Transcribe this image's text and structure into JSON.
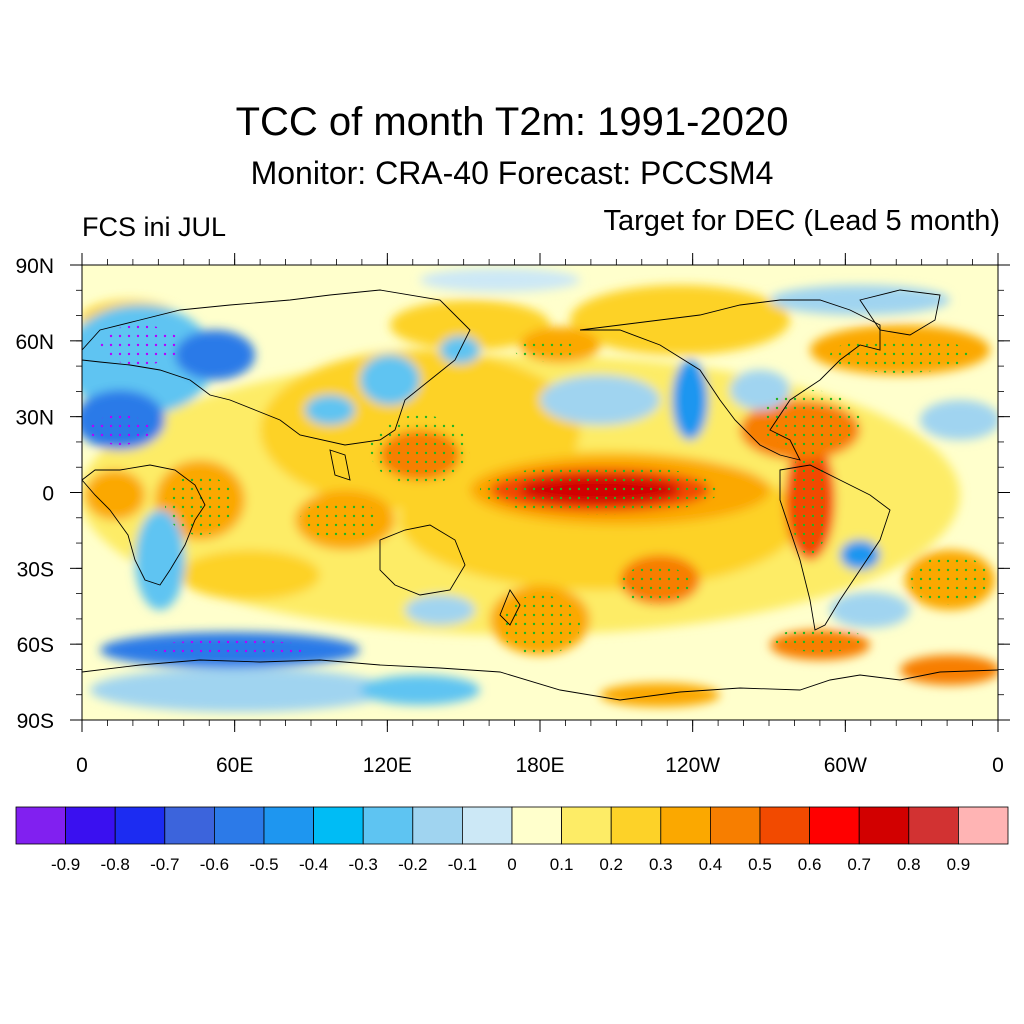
{
  "title": "TCC of month T2m: 1991-2020",
  "subtitle": "Monitor: CRA-40   Forecast: PCCSM4",
  "left_label": "FCS ini JUL",
  "right_label": "Target for DEC (Lead 5 month)",
  "map": {
    "lat_ticks": [
      "90N",
      "60N",
      "30N",
      "0",
      "30S",
      "60S",
      "90S"
    ],
    "lon_ticks": [
      "0",
      "60E",
      "120E",
      "180E",
      "120W",
      "60W",
      "0"
    ],
    "background_color": "#ffffcc"
  },
  "colorbar": {
    "colors": [
      "#8120f0",
      "#3a10f0",
      "#1c2cf2",
      "#3c64dc",
      "#2c7ae8",
      "#1e96f0",
      "#00bcf5",
      "#5ec4f2",
      "#a0d4f0",
      "#cce8f6",
      "#ffffcc",
      "#fdec66",
      "#fdd228",
      "#fba800",
      "#f77e00",
      "#f24a00",
      "#ff0000",
      "#d20000",
      "#d23232",
      "#ffb4b4"
    ],
    "labels": [
      "-0.9",
      "-0.8",
      "-0.7",
      "-0.6",
      "-0.5",
      "-0.4",
      "-0.3",
      "-0.2",
      "-0.1",
      "0",
      "0.1",
      "0.2",
      "0.3",
      "0.4",
      "0.5",
      "0.6",
      "0.7",
      "0.8",
      "0.9"
    ]
  }
}
